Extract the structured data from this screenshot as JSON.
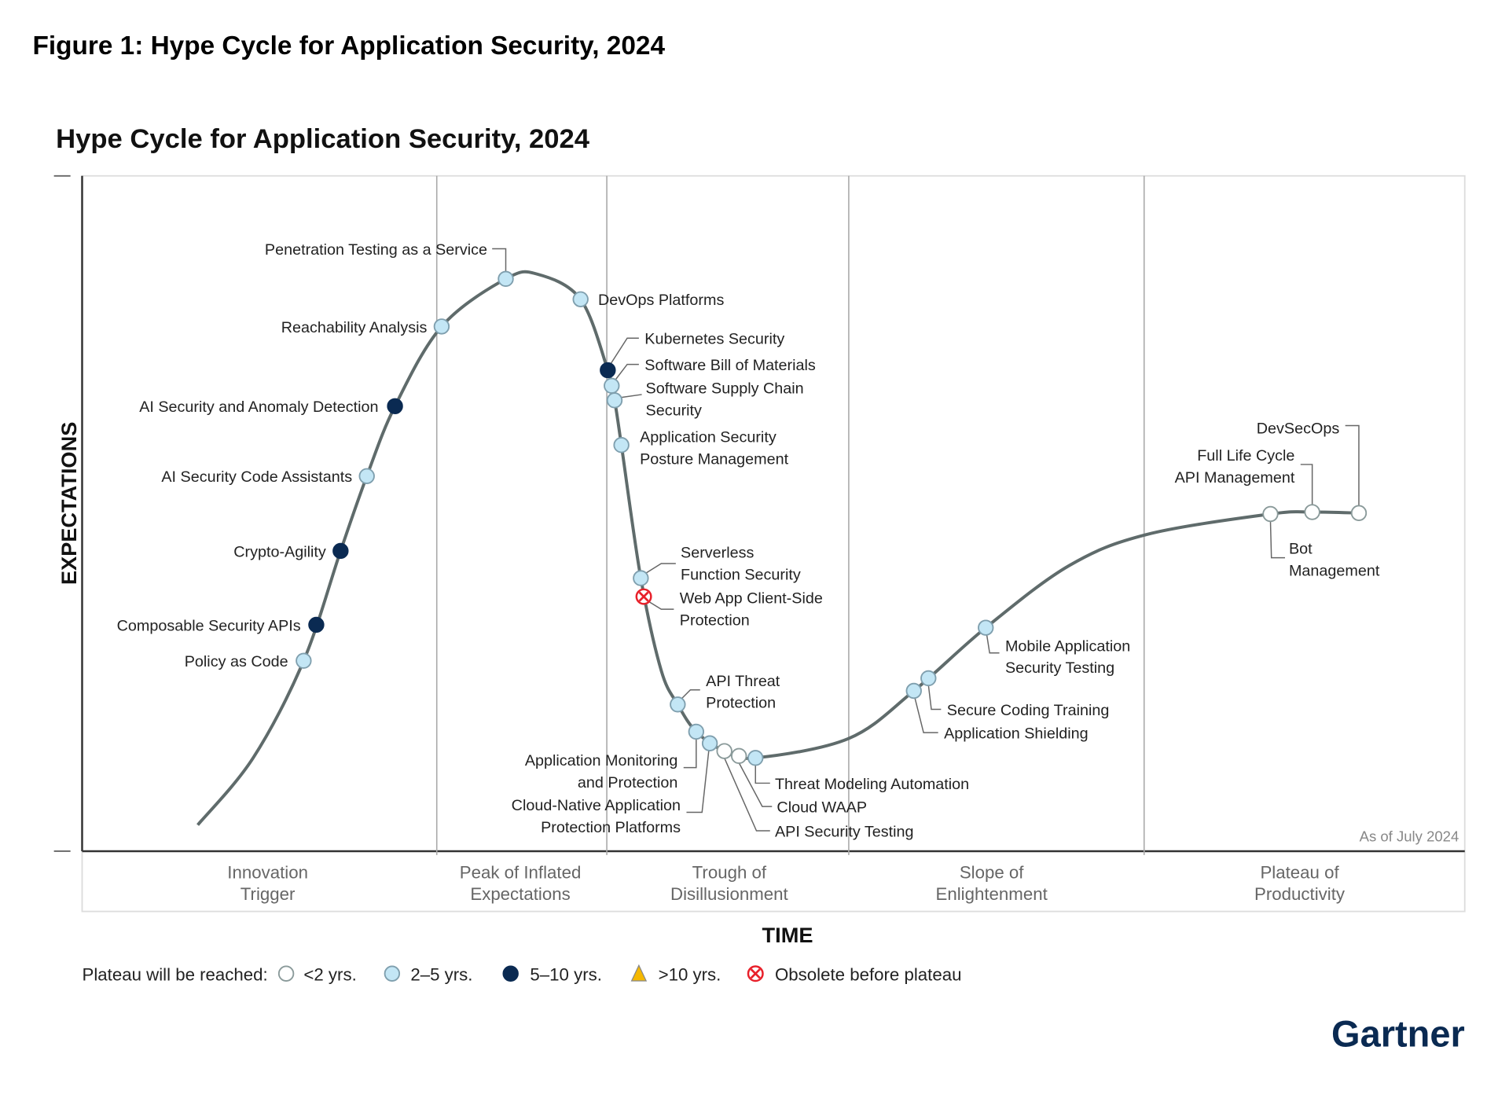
{
  "figure_title": "Figure 1: Hype Cycle for Application Security, 2024",
  "brand": "Gartner",
  "chart_data": {
    "type": "hype-cycle",
    "title": "Hype Cycle for Application Security, 2024",
    "ylabel": "EXPECTATIONS",
    "xlabel": "TIME",
    "as_of": "As of July 2024",
    "phases": [
      {
        "lines": [
          "Innovation",
          "Trigger"
        ]
      },
      {
        "lines": [
          "Peak of Inflated",
          "Expectations"
        ]
      },
      {
        "lines": [
          "Trough of",
          "Disillusionment"
        ]
      },
      {
        "lines": [
          "Slope of",
          "Enlightenment"
        ]
      },
      {
        "lines": [
          "Plateau of",
          "Productivity"
        ]
      }
    ],
    "legend": {
      "title": "Plateau will be reached:",
      "items": [
        {
          "key": "lt2",
          "label": "<2 yrs.",
          "color": "#ffffff"
        },
        {
          "key": "2to5",
          "label": "2–5 yrs.",
          "color": "#c3e6f5"
        },
        {
          "key": "5to10",
          "label": "5–10 yrs.",
          "color": "#0a2a52"
        },
        {
          "key": "gt10",
          "label": ">10 yrs.",
          "color": "#f5b800"
        },
        {
          "key": "obsolete",
          "label": "Obsolete before plateau",
          "color": "#e8202a"
        }
      ]
    },
    "points": [
      {
        "lines": [
          "Policy as Code"
        ],
        "phase": "Innovation Trigger",
        "plateau": "2to5"
      },
      {
        "lines": [
          "Composable Security APIs"
        ],
        "phase": "Innovation Trigger",
        "plateau": "5to10"
      },
      {
        "lines": [
          "Crypto-Agility"
        ],
        "phase": "Innovation Trigger",
        "plateau": "5to10"
      },
      {
        "lines": [
          "AI Security Code Assistants"
        ],
        "phase": "Innovation Trigger",
        "plateau": "2to5"
      },
      {
        "lines": [
          "AI Security and Anomaly Detection"
        ],
        "phase": "Innovation Trigger",
        "plateau": "5to10"
      },
      {
        "lines": [
          "Reachability Analysis"
        ],
        "phase": "Innovation Trigger",
        "plateau": "2to5"
      },
      {
        "lines": [
          "Penetration Testing as a Service"
        ],
        "phase": "Peak of Inflated Expectations",
        "plateau": "2to5"
      },
      {
        "lines": [
          "DevOps Platforms"
        ],
        "phase": "Peak of Inflated Expectations",
        "plateau": "2to5"
      },
      {
        "lines": [
          "Kubernetes Security"
        ],
        "phase": "Peak of Inflated Expectations",
        "plateau": "5to10"
      },
      {
        "lines": [
          "Software Bill of Materials"
        ],
        "phase": "Trough of Disillusionment",
        "plateau": "2to5"
      },
      {
        "lines": [
          "Software Supply Chain",
          "Security"
        ],
        "phase": "Trough of Disillusionment",
        "plateau": "2to5"
      },
      {
        "lines": [
          "Application Security",
          "Posture Management"
        ],
        "phase": "Trough of Disillusionment",
        "plateau": "2to5"
      },
      {
        "lines": [
          "Serverless",
          "Function Security"
        ],
        "phase": "Trough of Disillusionment",
        "plateau": "2to5"
      },
      {
        "lines": [
          "Web App Client-Side",
          "Protection"
        ],
        "phase": "Trough of Disillusionment",
        "plateau": "obsolete"
      },
      {
        "lines": [
          "API Threat",
          "Protection"
        ],
        "phase": "Trough of Disillusionment",
        "plateau": "2to5"
      },
      {
        "lines": [
          "Application Monitoring",
          "and Protection"
        ],
        "phase": "Trough of Disillusionment",
        "plateau": "2to5"
      },
      {
        "lines": [
          "Cloud-Native Application",
          "Protection Platforms"
        ],
        "phase": "Trough of Disillusionment",
        "plateau": "2to5"
      },
      {
        "lines": [
          "API Security Testing"
        ],
        "phase": "Trough of Disillusionment",
        "plateau": "lt2"
      },
      {
        "lines": [
          "Cloud WAAP"
        ],
        "phase": "Trough of Disillusionment",
        "plateau": "lt2"
      },
      {
        "lines": [
          "Threat Modeling Automation"
        ],
        "phase": "Trough of Disillusionment",
        "plateau": "2to5"
      },
      {
        "lines": [
          "Application Shielding"
        ],
        "phase": "Slope of Enlightenment",
        "plateau": "2to5"
      },
      {
        "lines": [
          "Secure Coding Training"
        ],
        "phase": "Slope of Enlightenment",
        "plateau": "2to5"
      },
      {
        "lines": [
          "Mobile Application",
          "Security Testing"
        ],
        "phase": "Slope of Enlightenment",
        "plateau": "2to5"
      },
      {
        "lines": [
          "Bot",
          "Management"
        ],
        "phase": "Plateau of Productivity",
        "plateau": "lt2"
      },
      {
        "lines": [
          "Full Life Cycle",
          "API Management"
        ],
        "phase": "Plateau of Productivity",
        "plateau": "lt2"
      },
      {
        "lines": [
          "DevSecOps"
        ],
        "phase": "Plateau of Productivity",
        "plateau": "lt2"
      }
    ]
  }
}
